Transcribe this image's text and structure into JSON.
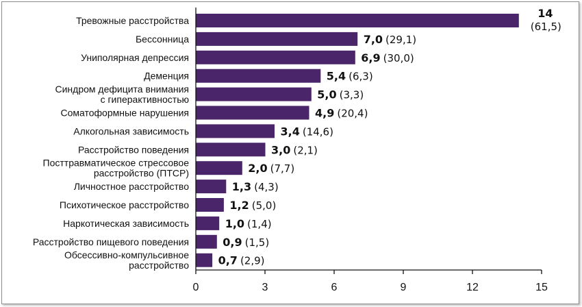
{
  "chart_data": {
    "type": "bar",
    "orientation": "horizontal",
    "bar_color": "#4a2569",
    "xlim": [
      0,
      15
    ],
    "xticks": [
      "0",
      "3",
      "6",
      "9",
      "12",
      "15"
    ],
    "grid": false,
    "categories": [
      [
        "Тревожные расстройства"
      ],
      [
        "Бессонница"
      ],
      [
        "Униполярная депрессия"
      ],
      [
        "Деменция"
      ],
      [
        "Синдром дефицита внимания",
        "с гиперактивностью"
      ],
      [
        "Соматоформные нарушения"
      ],
      [
        "Алкогольная зависимость"
      ],
      [
        "Расстройство поведения"
      ],
      [
        "Посттравматическое стрессовое",
        "расстройство (ПТСР)"
      ],
      [
        "Личностное расстройство"
      ],
      [
        "Психотическое расстройство"
      ],
      [
        "Наркотическая зависимость"
      ],
      [
        "Расстройство пищевого поведения"
      ],
      [
        "Обсессивно-компульсивное",
        "расстройство"
      ]
    ],
    "values": [
      14,
      7.0,
      6.9,
      5.4,
      5.0,
      4.9,
      3.4,
      3.0,
      2.0,
      1.3,
      1.2,
      1.0,
      0.9,
      0.7
    ],
    "value_labels": [
      "14",
      "7,0",
      "6,9",
      "5,4",
      "5,0",
      "4,9",
      "3,4",
      "3,0",
      "2,0",
      "1,3",
      "1,2",
      "1,0",
      "0,9",
      "0,7"
    ],
    "paren_labels": [
      "(61,5)",
      "(29,1)",
      "(30,0)",
      "(6,3)",
      "(3,3)",
      "(20,4)",
      "(14,6)",
      "(2,1)",
      "(7,7)",
      "(4,3)",
      "(5,0)",
      "(1,4)",
      "(1,5)",
      "(2,9)"
    ]
  }
}
